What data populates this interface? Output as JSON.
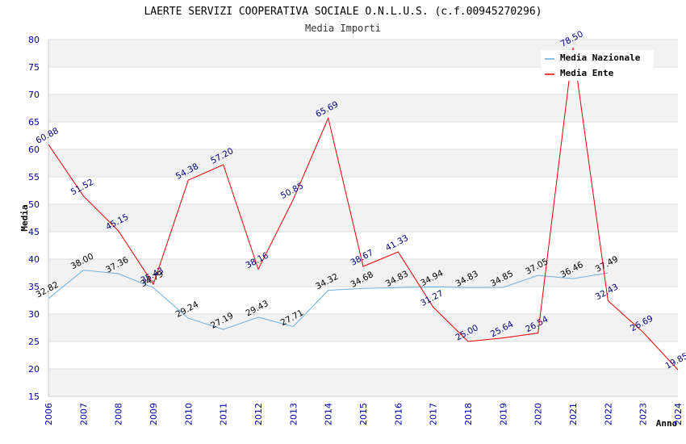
{
  "chart_data": {
    "type": "line",
    "title": "LAERTE SERVIZI COOPERATIVA SOCIALE O.N.L.U.S. (c.f.00945270296)",
    "subtitle": "Media Importi",
    "ylabel": "Media",
    "xlabel": "Anno",
    "ylim": [
      15,
      80
    ],
    "yticks": [
      "15",
      "20",
      "25",
      "30",
      "35",
      "40",
      "45",
      "50",
      "55",
      "60",
      "65",
      "70",
      "75",
      "80"
    ],
    "categories": [
      "2006",
      "2007",
      "2008",
      "2009",
      "2010",
      "2011",
      "2012",
      "2013",
      "2014",
      "2015",
      "2016",
      "2017",
      "2018",
      "2019",
      "2020",
      "2021",
      "2022",
      "2023",
      "2024"
    ],
    "series": [
      {
        "name": "Media Nazionale",
        "color": "#6aaee0",
        "label_color": "#000000",
        "values": [
          32.82,
          38.0,
          37.36,
          34.79,
          29.24,
          27.19,
          29.43,
          27.71,
          34.32,
          34.68,
          34.83,
          34.94,
          34.83,
          34.85,
          37.05,
          36.46,
          37.49,
          null,
          null
        ],
        "labels": [
          "32.82",
          "38.00",
          "37.36",
          "34.79",
          "29.24",
          "27.19",
          "29.43",
          "27.71",
          "34.32",
          "34.68",
          "34.83",
          "34.94",
          "34.83",
          "34.85",
          "37.05",
          "36.46",
          "37.49",
          "",
          ""
        ]
      },
      {
        "name": "Media Ente",
        "color": "#ee0000",
        "label_color": "#000080",
        "values": [
          60.88,
          51.52,
          45.15,
          35.43,
          54.38,
          57.2,
          38.16,
          50.85,
          65.69,
          38.67,
          41.33,
          31.27,
          25.0,
          25.64,
          26.54,
          78.5,
          32.43,
          26.69,
          19.85
        ],
        "labels": [
          "60.88",
          "51.52",
          "45.15",
          "35.43",
          "54.38",
          "57.20",
          "38.16",
          "50.85",
          "65.69",
          "38.67",
          "41.33",
          "31.27",
          "25.00",
          "25.64",
          "26.54",
          "78.50",
          "32.43",
          "26.69",
          "19.85"
        ]
      }
    ],
    "legend": [
      "Media Nazionale",
      "Media Ente"
    ],
    "legend_position": "top-right",
    "grid": true,
    "band_color": "#f2f2f2"
  }
}
